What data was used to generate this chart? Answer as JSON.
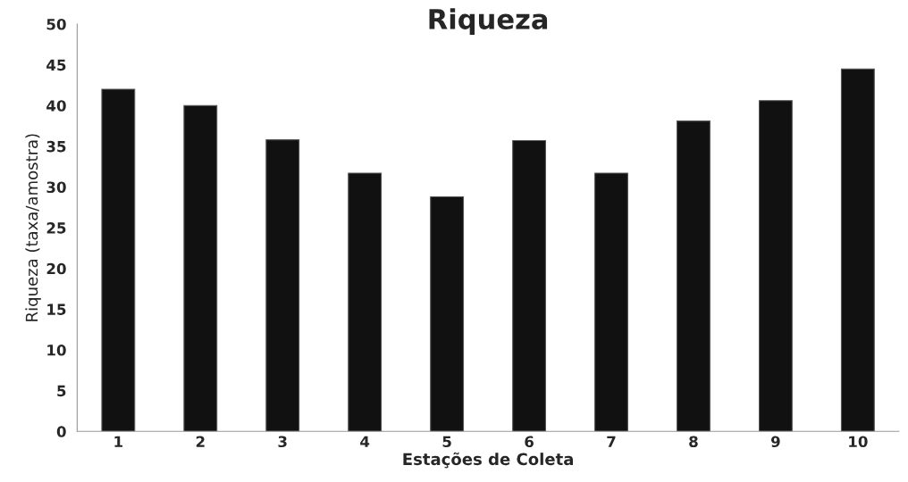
{
  "chart_data": {
    "type": "bar",
    "title": "Riqueza",
    "xlabel": "Estações de Coleta",
    "ylabel": "Riqueza (taxa/amostra)",
    "categories": [
      "1",
      "2",
      "3",
      "4",
      "5",
      "6",
      "7",
      "8",
      "9",
      "10"
    ],
    "values": [
      42.0,
      40.0,
      35.8,
      31.7,
      28.8,
      35.7,
      31.7,
      38.1,
      40.6,
      44.5
    ],
    "color": "#111111",
    "ylim": [
      0,
      50
    ],
    "yticks": [
      0,
      5,
      10,
      15,
      20,
      25,
      30,
      35,
      40,
      45,
      50
    ],
    "grid": false
  }
}
